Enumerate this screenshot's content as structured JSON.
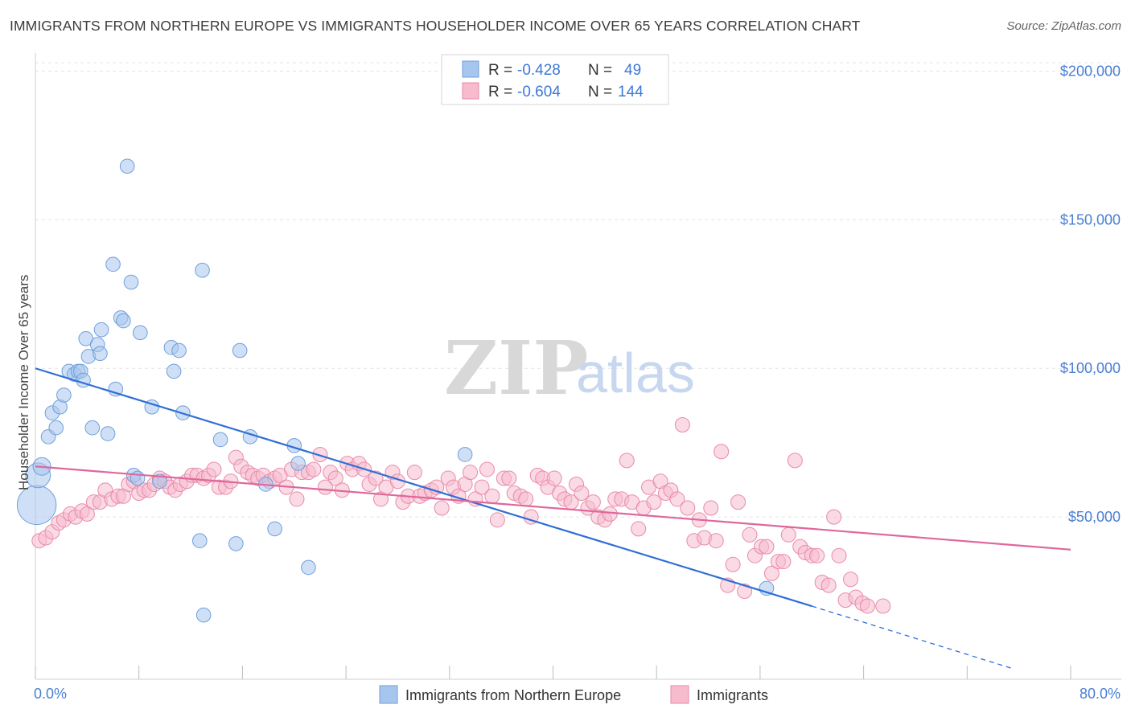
{
  "title": "IMMIGRANTS FROM NORTHERN EUROPE VS IMMIGRANTS HOUSEHOLDER INCOME OVER 65 YEARS CORRELATION CHART",
  "source": "Source: ZipAtlas.com",
  "watermark": {
    "zip": "ZIP",
    "atlas": "atlas"
  },
  "legend": {
    "rows": [
      {
        "r_label": "R =",
        "r_value": "-0.428",
        "n_label": "N =",
        "n_value": "49",
        "color": "#a7c6ee",
        "stroke": "#6f9fdc"
      },
      {
        "r_label": "R =",
        "r_value": "-0.604",
        "n_label": "N =",
        "n_value": "144",
        "color": "#f6bccd",
        "stroke": "#e98aa8"
      }
    ]
  },
  "bottom_legend": [
    {
      "label": "Immigrants from Northern Europe",
      "color": "#a7c6ee",
      "stroke": "#6f9fdc"
    },
    {
      "label": "Immigrants",
      "color": "#f6bccd",
      "stroke": "#e98aa8"
    }
  ],
  "chart_data": {
    "type": "scatter",
    "title": "IMMIGRANTS FROM NORTHERN EUROPE VS IMMIGRANTS HOUSEHOLDER INCOME OVER 65 YEARS CORRELATION CHART",
    "xlabel": "",
    "ylabel": "Householder Income Over 65 years",
    "xlim": [
      0,
      80
    ],
    "ylim": [
      0,
      205000
    ],
    "x_tick_labels": [
      "0.0%",
      "80.0%"
    ],
    "y_ticks": [
      {
        "value": 50000,
        "label": "$50,000"
      },
      {
        "value": 100000,
        "label": "$100,000"
      },
      {
        "value": 150000,
        "label": "$150,000"
      },
      {
        "value": 200000,
        "label": "$200,000"
      }
    ],
    "grid": true,
    "legend_position": "top-center",
    "series": [
      {
        "name": "Immigrants from Northern Europe",
        "color": "#a7c6ee",
        "stroke": "#6f9fdc",
        "line_color": "#2f6fd6",
        "trend": {
          "x0": 0,
          "y0": 100000,
          "x1": 60,
          "y1": 20000,
          "dashed_to_x": 75.5,
          "dashed_to_y": -1000
        },
        "points": [
          [
            0.1,
            54000,
            2.2
          ],
          [
            0.2,
            64000,
            1.4
          ],
          [
            0.5,
            67000,
            1.0
          ],
          [
            1.0,
            77000,
            0.8
          ],
          [
            1.3,
            85000,
            0.8
          ],
          [
            1.6,
            80000,
            0.8
          ],
          [
            1.9,
            87000,
            0.8
          ],
          [
            2.2,
            91000,
            0.8
          ],
          [
            2.6,
            99000,
            0.8
          ],
          [
            3.0,
            98000,
            0.8
          ],
          [
            3.3,
            99000,
            0.8
          ],
          [
            3.5,
            99000,
            0.8
          ],
          [
            3.7,
            96000,
            0.8
          ],
          [
            3.9,
            110000,
            0.8
          ],
          [
            4.1,
            104000,
            0.8
          ],
          [
            4.4,
            80000,
            0.8
          ],
          [
            4.8,
            108000,
            0.8
          ],
          [
            5.0,
            105000,
            0.8
          ],
          [
            5.1,
            113000,
            0.8
          ],
          [
            5.6,
            78000,
            0.8
          ],
          [
            6.0,
            135000,
            0.8
          ],
          [
            6.2,
            93000,
            0.8
          ],
          [
            6.6,
            117000,
            0.8
          ],
          [
            6.8,
            116000,
            0.8
          ],
          [
            7.1,
            168000,
            0.8
          ],
          [
            7.4,
            129000,
            0.8
          ],
          [
            7.6,
            64000,
            0.8
          ],
          [
            7.9,
            63000,
            0.8
          ],
          [
            8.1,
            112000,
            0.8
          ],
          [
            9.0,
            87000,
            0.8
          ],
          [
            9.6,
            62000,
            0.8
          ],
          [
            10.5,
            107000,
            0.8
          ],
          [
            10.7,
            99000,
            0.8
          ],
          [
            11.1,
            106000,
            0.8
          ],
          [
            11.4,
            85000,
            0.8
          ],
          [
            12.7,
            42000,
            0.8
          ],
          [
            12.9,
            133000,
            0.8
          ],
          [
            13.0,
            17000,
            0.8
          ],
          [
            14.3,
            76000,
            0.8
          ],
          [
            15.5,
            41000,
            0.8
          ],
          [
            15.8,
            106000,
            0.8
          ],
          [
            16.6,
            77000,
            0.8
          ],
          [
            17.8,
            61000,
            0.8
          ],
          [
            18.5,
            46000,
            0.8
          ],
          [
            20.0,
            74000,
            0.8
          ],
          [
            20.3,
            68000,
            0.8
          ],
          [
            21.1,
            33000,
            0.8
          ],
          [
            33.2,
            71000,
            0.8
          ],
          [
            56.5,
            26000,
            0.8
          ]
        ]
      },
      {
        "name": "Immigrants",
        "color": "#f6bccd",
        "stroke": "#e98aa8",
        "line_color": "#e0679a",
        "trend": {
          "x0": 0,
          "y0": 67000,
          "x1": 80,
          "y1": 39000
        },
        "points": [
          [
            0.3,
            42000
          ],
          [
            0.8,
            43000
          ],
          [
            1.3,
            45000
          ],
          [
            1.8,
            48000
          ],
          [
            2.2,
            49000
          ],
          [
            2.7,
            51000
          ],
          [
            3.1,
            50000
          ],
          [
            3.6,
            52000
          ],
          [
            4.0,
            51000
          ],
          [
            4.5,
            55000
          ],
          [
            5.0,
            55000
          ],
          [
            5.4,
            59000
          ],
          [
            5.9,
            56000
          ],
          [
            6.4,
            57000
          ],
          [
            6.8,
            57000
          ],
          [
            7.2,
            61000
          ],
          [
            7.6,
            62000
          ],
          [
            8.0,
            58000
          ],
          [
            8.4,
            59000
          ],
          [
            8.8,
            59000
          ],
          [
            9.2,
            61000
          ],
          [
            9.6,
            63000
          ],
          [
            10.0,
            62000
          ],
          [
            10.4,
            60000
          ],
          [
            10.8,
            59000
          ],
          [
            11.2,
            61000
          ],
          [
            11.7,
            62000
          ],
          [
            12.1,
            64000
          ],
          [
            12.5,
            64000
          ],
          [
            13.0,
            63000
          ],
          [
            13.4,
            64000
          ],
          [
            13.8,
            66000
          ],
          [
            14.2,
            60000
          ],
          [
            14.7,
            60000
          ],
          [
            15.1,
            62000
          ],
          [
            15.5,
            70000
          ],
          [
            15.9,
            67000
          ],
          [
            16.4,
            65000
          ],
          [
            16.8,
            64000
          ],
          [
            17.2,
            63000
          ],
          [
            17.6,
            64000
          ],
          [
            18.1,
            62000
          ],
          [
            18.5,
            63000
          ],
          [
            18.9,
            64000
          ],
          [
            19.4,
            60000
          ],
          [
            19.8,
            66000
          ],
          [
            20.2,
            56000
          ],
          [
            20.6,
            65000
          ],
          [
            21.1,
            65000
          ],
          [
            21.5,
            66000
          ],
          [
            22.0,
            71000
          ],
          [
            22.4,
            60000
          ],
          [
            22.8,
            65000
          ],
          [
            23.2,
            63000
          ],
          [
            23.7,
            59000
          ],
          [
            24.1,
            68000
          ],
          [
            24.5,
            66000
          ],
          [
            25.0,
            68000
          ],
          [
            25.4,
            66000
          ],
          [
            25.8,
            61000
          ],
          [
            26.3,
            63000
          ],
          [
            26.7,
            56000
          ],
          [
            27.1,
            60000
          ],
          [
            27.6,
            65000
          ],
          [
            28.0,
            62000
          ],
          [
            28.4,
            55000
          ],
          [
            28.8,
            57000
          ],
          [
            29.3,
            65000
          ],
          [
            29.7,
            57000
          ],
          [
            30.1,
            58000
          ],
          [
            30.6,
            59000
          ],
          [
            31.0,
            60000
          ],
          [
            31.4,
            53000
          ],
          [
            31.9,
            63000
          ],
          [
            32.3,
            60000
          ],
          [
            32.7,
            57000
          ],
          [
            33.2,
            61000
          ],
          [
            33.6,
            65000
          ],
          [
            34.0,
            56000
          ],
          [
            34.5,
            60000
          ],
          [
            34.9,
            66000
          ],
          [
            35.3,
            57000
          ],
          [
            35.7,
            49000
          ],
          [
            36.2,
            63000
          ],
          [
            36.6,
            63000
          ],
          [
            37.0,
            58000
          ],
          [
            37.5,
            57000
          ],
          [
            37.9,
            56000
          ],
          [
            38.3,
            50000
          ],
          [
            38.8,
            64000
          ],
          [
            39.2,
            63000
          ],
          [
            39.6,
            60000
          ],
          [
            40.1,
            63000
          ],
          [
            40.5,
            58000
          ],
          [
            40.9,
            56000
          ],
          [
            41.4,
            55000
          ],
          [
            41.8,
            61000
          ],
          [
            42.2,
            58000
          ],
          [
            42.7,
            53000
          ],
          [
            43.1,
            55000
          ],
          [
            43.5,
            50000
          ],
          [
            44.0,
            49000
          ],
          [
            44.4,
            51000
          ],
          [
            44.8,
            56000
          ],
          [
            45.3,
            56000
          ],
          [
            45.7,
            69000
          ],
          [
            46.1,
            55000
          ],
          [
            46.6,
            46000
          ],
          [
            47.0,
            53000
          ],
          [
            47.4,
            60000
          ],
          [
            47.8,
            55000
          ],
          [
            48.3,
            62000
          ],
          [
            48.7,
            58000
          ],
          [
            49.1,
            59000
          ],
          [
            49.6,
            56000
          ],
          [
            50.0,
            81000
          ],
          [
            50.4,
            53000
          ],
          [
            50.9,
            42000
          ],
          [
            51.3,
            49000
          ],
          [
            51.7,
            43000
          ],
          [
            52.2,
            53000
          ],
          [
            52.6,
            42000
          ],
          [
            53.0,
            72000
          ],
          [
            53.5,
            27000
          ],
          [
            53.9,
            34000
          ],
          [
            54.3,
            55000
          ],
          [
            54.8,
            25000
          ],
          [
            55.2,
            44000
          ],
          [
            55.6,
            37000
          ],
          [
            56.1,
            40000
          ],
          [
            56.5,
            40000
          ],
          [
            56.9,
            31000
          ],
          [
            57.4,
            35000
          ],
          [
            57.8,
            35000
          ],
          [
            58.2,
            44000
          ],
          [
            58.7,
            69000
          ],
          [
            59.1,
            40000
          ],
          [
            59.5,
            38000
          ],
          [
            60.0,
            37000
          ],
          [
            60.4,
            37000
          ],
          [
            60.8,
            28000
          ],
          [
            61.3,
            27000
          ],
          [
            61.7,
            50000
          ],
          [
            62.1,
            37000
          ],
          [
            62.6,
            22000
          ],
          [
            63.0,
            29000
          ],
          [
            63.4,
            23000
          ],
          [
            63.9,
            21000
          ],
          [
            64.3,
            20000
          ],
          [
            65.5,
            20000
          ]
        ]
      }
    ]
  }
}
